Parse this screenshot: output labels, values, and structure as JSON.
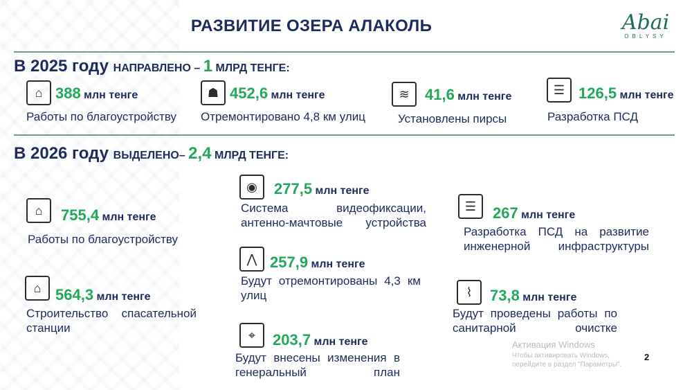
{
  "title": "РАЗВИТИЕ ОЗЕРА АЛАКОЛЬ",
  "logo": {
    "mark": "Abai",
    "sub": "OBLYSY"
  },
  "brand_colors": {
    "navy": "#1c2a5e",
    "green": "#22a858",
    "teal": "#1e6b5e"
  },
  "y2025": {
    "year": "В 2025 году",
    "mid": "НАПРАВЛЕНО – ",
    "amount": "1",
    "unit": " МЛРД ТЕНГЕ:",
    "items": [
      {
        "icon": "landscaping-icon",
        "amount": "388",
        "unit": " млн тенге",
        "desc": "Работы по благоустройству"
      },
      {
        "icon": "road-worker-icon",
        "amount": "452,6",
        "unit": " млн тенге",
        "desc": "Отремонтировано 4,8 км улиц"
      },
      {
        "icon": "pier-icon",
        "amount": "41,6",
        "unit": " млн тенге",
        "desc": "Установлены пирсы"
      },
      {
        "icon": "document-icon",
        "amount": "126,5",
        "unit": " млн тенге",
        "desc": "Разработка ПСД"
      }
    ]
  },
  "y2026": {
    "year": "В 2026 году",
    "mid": "ВЫДЕЛЕНО– ",
    "amount": "2,4",
    "unit": " МЛРД ТЕНГЕ:",
    "items": [
      {
        "icon": "landscaping-icon",
        "amount": "755,4",
        "unit": " млн тенге",
        "desc": "Работы по благоустройству"
      },
      {
        "icon": "house-icon",
        "amount": "564,3",
        "unit": " млн тенге",
        "desc": "Строительство спасательной станции"
      },
      {
        "icon": "cctv-camera-icon",
        "amount": "277,5",
        "unit": " млн тенге",
        "desc": "Система видеофиксации, антенно-мачтовые устройства"
      },
      {
        "icon": "road-icon",
        "amount": "257,9",
        "unit": " млн тенге",
        "desc": "Будут отремонтированы 4,3 км улиц"
      },
      {
        "icon": "map-pin-icon",
        "amount": "203,7",
        "unit": " млн тенге",
        "desc": "Будут внесены изменения в генеральный план"
      },
      {
        "icon": "document-icon",
        "amount": "267",
        "unit": " млн тенге",
        "desc": "Разработка ПСД на развитие инженерной инфраструктуры"
      },
      {
        "icon": "cleaning-icon",
        "amount": "73,8",
        "unit": " млн тенге",
        "desc": "Будут проведены работы по санитарной очистке"
      }
    ]
  },
  "watermark": {
    "line1": "Активация Windows",
    "line2": "Чтобы активировать Windows, перейдите в раздел \"Параметры\"."
  },
  "page_number": "2"
}
